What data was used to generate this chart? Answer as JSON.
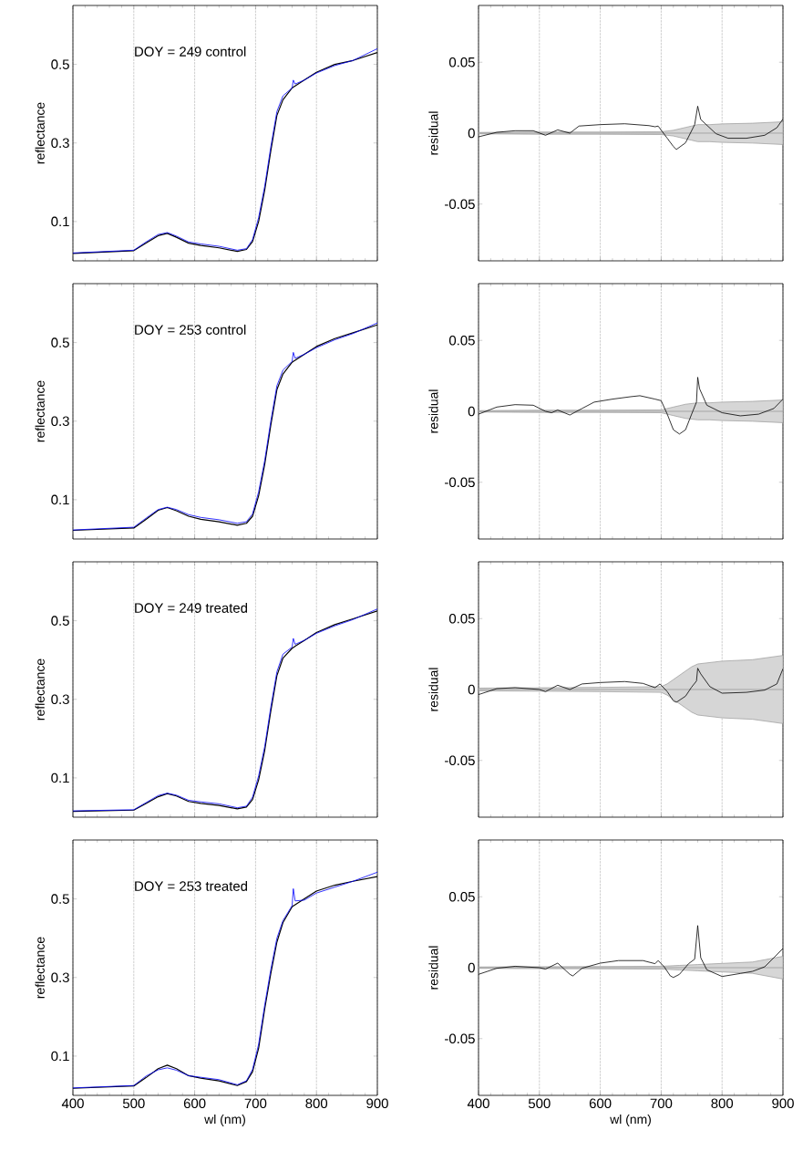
{
  "chart_data": [
    {
      "type": "line",
      "annotations": [
        "DOY = 249 control"
      ],
      "ylabel": "reflectance",
      "xlim": [
        400,
        900
      ],
      "xticks": [
        400,
        500,
        600,
        700,
        800,
        900
      ],
      "ylim": [
        0,
        0.65
      ],
      "yticks": [
        0.1,
        0.3,
        0.5
      ],
      "grid": "x",
      "tick_labels": "y",
      "series": [
        {
          "color": "#0000ff",
          "x": [
            400,
            500,
            520,
            540,
            555,
            570,
            590,
            610,
            640,
            670,
            685,
            695,
            705,
            715,
            725,
            735,
            745,
            760,
            762,
            765,
            780,
            800,
            830,
            860,
            900
          ],
          "values": [
            0.02,
            0.027,
            0.048,
            0.067,
            0.072,
            0.063,
            0.048,
            0.043,
            0.037,
            0.027,
            0.031,
            0.054,
            0.11,
            0.19,
            0.29,
            0.38,
            0.42,
            0.44,
            0.46,
            0.45,
            0.46,
            0.478,
            0.497,
            0.51,
            0.54
          ]
        },
        {
          "color": "#000000",
          "x": [
            400,
            500,
            520,
            540,
            555,
            570,
            590,
            610,
            640,
            670,
            685,
            695,
            705,
            715,
            725,
            735,
            745,
            760,
            762,
            765,
            780,
            800,
            830,
            860,
            900
          ],
          "values": [
            0.019,
            0.026,
            0.045,
            0.064,
            0.07,
            0.06,
            0.045,
            0.039,
            0.033,
            0.024,
            0.029,
            0.049,
            0.1,
            0.18,
            0.28,
            0.37,
            0.41,
            0.44,
            0.442,
            0.445,
            0.46,
            0.48,
            0.5,
            0.51,
            0.53
          ]
        }
      ]
    },
    {
      "type": "line",
      "ylabel": "residual",
      "xlim": [
        400,
        900
      ],
      "xticks": [
        400,
        500,
        600,
        700,
        800,
        900
      ],
      "ylim": [
        -0.09,
        0.09
      ],
      "yticks": [
        -0.05,
        0,
        0.05
      ],
      "grid": "x",
      "tick_labels": "y",
      "series": [
        {
          "color": "#999999",
          "x": [
            400,
            500,
            600,
            700,
            710,
            720,
            730,
            740,
            750,
            760,
            780,
            800,
            850,
            900
          ],
          "values": [
            0,
            0,
            0,
            0,
            0,
            0,
            0,
            0,
            0,
            0,
            0,
            0,
            0,
            0
          ],
          "lower": [
            -0.0005,
            -0.0008,
            -0.0008,
            -0.001,
            -0.0015,
            -0.002,
            -0.003,
            -0.004,
            -0.005,
            -0.006,
            -0.006,
            -0.0065,
            -0.007,
            -0.008
          ],
          "upper": [
            0.0005,
            0.0008,
            0.0008,
            0.001,
            0.0015,
            0.002,
            0.003,
            0.004,
            0.005,
            0.006,
            0.006,
            0.0065,
            0.007,
            0.008
          ]
        },
        {
          "color": "#000000",
          "x": [
            400,
            430,
            460,
            490,
            510,
            530,
            550,
            565,
            600,
            640,
            680,
            690,
            695,
            710,
            720,
            725,
            740,
            755,
            760,
            765,
            790,
            810,
            840,
            870,
            890,
            900
          ],
          "values": [
            -0.0026,
            0.0006,
            0.0017,
            0.0017,
            -0.0015,
            0.0023,
            0,
            0.005,
            0.006,
            0.0066,
            0.0053,
            0.0045,
            0.005,
            -0.0036,
            -0.0094,
            -0.0115,
            -0.0068,
            0.006,
            0.019,
            0.0096,
            -0.0004,
            -0.0036,
            -0.0036,
            -0.0015,
            0.0038,
            0.01
          ]
        }
      ]
    },
    {
      "type": "line",
      "annotations": [
        "DOY = 253 control"
      ],
      "ylabel": "reflectance",
      "xlim": [
        400,
        900
      ],
      "xticks": [
        400,
        500,
        600,
        700,
        800,
        900
      ],
      "ylim": [
        0,
        0.65
      ],
      "yticks": [
        0.1,
        0.3,
        0.5
      ],
      "grid": "x",
      "tick_labels": "y",
      "series": [
        {
          "color": "#0000ff",
          "x": [
            400,
            500,
            520,
            540,
            555,
            570,
            590,
            610,
            640,
            670,
            685,
            695,
            705,
            715,
            725,
            735,
            745,
            760,
            762,
            765,
            780,
            800,
            830,
            860,
            900
          ],
          "values": [
            0.023,
            0.03,
            0.053,
            0.075,
            0.081,
            0.075,
            0.062,
            0.055,
            0.049,
            0.04,
            0.044,
            0.064,
            0.12,
            0.2,
            0.3,
            0.39,
            0.43,
            0.452,
            0.475,
            0.46,
            0.47,
            0.487,
            0.507,
            0.523,
            0.55
          ]
        },
        {
          "color": "#000000",
          "x": [
            400,
            500,
            520,
            540,
            555,
            570,
            590,
            610,
            640,
            670,
            685,
            695,
            705,
            715,
            725,
            735,
            745,
            760,
            762,
            765,
            780,
            800,
            830,
            860,
            900
          ],
          "values": [
            0.022,
            0.028,
            0.05,
            0.073,
            0.08,
            0.072,
            0.058,
            0.05,
            0.044,
            0.035,
            0.04,
            0.058,
            0.11,
            0.19,
            0.29,
            0.38,
            0.42,
            0.45,
            0.452,
            0.455,
            0.47,
            0.49,
            0.51,
            0.525,
            0.545
          ]
        }
      ]
    },
    {
      "type": "line",
      "ylabel": "residual",
      "xlim": [
        400,
        900
      ],
      "xticks": [
        400,
        500,
        600,
        700,
        800,
        900
      ],
      "ylim": [
        -0.09,
        0.09
      ],
      "yticks": [
        -0.05,
        0,
        0.05
      ],
      "grid": "x",
      "tick_labels": "y",
      "series": [
        {
          "color": "#999999",
          "x": [
            400,
            500,
            600,
            700,
            710,
            720,
            730,
            740,
            750,
            760,
            780,
            800,
            850,
            900
          ],
          "values": [
            0,
            0,
            0,
            0,
            0,
            0,
            0,
            0,
            0,
            0,
            0,
            0,
            0,
            0
          ],
          "lower": [
            -0.0005,
            -0.0008,
            -0.0008,
            -0.001,
            -0.002,
            -0.003,
            -0.004,
            -0.005,
            -0.0055,
            -0.006,
            -0.006,
            -0.0065,
            -0.007,
            -0.008
          ],
          "upper": [
            0.0005,
            0.0008,
            0.0008,
            0.001,
            0.002,
            0.003,
            0.004,
            0.005,
            0.0055,
            0.006,
            0.006,
            0.0065,
            0.007,
            0.008
          ]
        },
        {
          "color": "#000000",
          "x": [
            400,
            430,
            460,
            490,
            510,
            520,
            530,
            550,
            570,
            590,
            620,
            650,
            665,
            690,
            700,
            710,
            720,
            730,
            740,
            750,
            758,
            760,
            763,
            775,
            800,
            830,
            860,
            885,
            900
          ],
          "values": [
            -0.002,
            0.003,
            0.0047,
            0.0043,
            0,
            -0.001,
            0.0009,
            -0.0026,
            0.002,
            0.0065,
            0.0086,
            0.0103,
            0.011,
            0.0086,
            0.0075,
            -0.002,
            -0.013,
            -0.016,
            -0.013,
            -0.002,
            0.0065,
            0.024,
            0.016,
            0.0043,
            -0.001,
            -0.0032,
            -0.002,
            0.002,
            0.0086
          ]
        }
      ]
    },
    {
      "type": "line",
      "annotations": [
        "DOY = 249 treated"
      ],
      "ylabel": "reflectance",
      "xlim": [
        400,
        900
      ],
      "xticks": [
        400,
        500,
        600,
        700,
        800,
        900
      ],
      "ylim": [
        0,
        0.65
      ],
      "yticks": [
        0.1,
        0.3,
        0.5
      ],
      "grid": "x",
      "tick_labels": "y",
      "series": [
        {
          "color": "#0000ff",
          "x": [
            400,
            500,
            520,
            540,
            555,
            570,
            590,
            610,
            640,
            670,
            685,
            695,
            705,
            715,
            725,
            735,
            745,
            760,
            762,
            765,
            780,
            800,
            830,
            860,
            900
          ],
          "values": [
            0.016,
            0.019,
            0.037,
            0.055,
            0.061,
            0.056,
            0.043,
            0.039,
            0.034,
            0.024,
            0.028,
            0.051,
            0.105,
            0.18,
            0.28,
            0.37,
            0.415,
            0.433,
            0.455,
            0.44,
            0.45,
            0.468,
            0.487,
            0.503,
            0.53
          ]
        },
        {
          "color": "#000000",
          "x": [
            400,
            500,
            520,
            540,
            555,
            570,
            590,
            610,
            640,
            670,
            685,
            695,
            705,
            715,
            725,
            735,
            745,
            760,
            762,
            765,
            780,
            800,
            830,
            860,
            900
          ],
          "values": [
            0.015,
            0.018,
            0.035,
            0.052,
            0.06,
            0.054,
            0.04,
            0.035,
            0.03,
            0.021,
            0.026,
            0.045,
            0.095,
            0.17,
            0.27,
            0.36,
            0.405,
            0.43,
            0.432,
            0.435,
            0.45,
            0.47,
            0.49,
            0.505,
            0.525
          ]
        }
      ]
    },
    {
      "type": "line",
      "ylabel": "residual",
      "xlim": [
        400,
        900
      ],
      "xticks": [
        400,
        500,
        600,
        700,
        800,
        900
      ],
      "ylim": [
        -0.09,
        0.09
      ],
      "yticks": [
        -0.05,
        0,
        0.05
      ],
      "grid": "x",
      "tick_labels": "y",
      "series": [
        {
          "color": "#999999",
          "x": [
            400,
            500,
            600,
            700,
            710,
            720,
            730,
            740,
            750,
            760,
            780,
            800,
            850,
            900
          ],
          "values": [
            0,
            0,
            0,
            0,
            0,
            0,
            0,
            0,
            0,
            0,
            0,
            0,
            0,
            0
          ],
          "lower": [
            -0.001,
            -0.0012,
            -0.0015,
            -0.002,
            -0.004,
            -0.007,
            -0.01,
            -0.013,
            -0.016,
            -0.018,
            -0.019,
            -0.02,
            -0.021,
            -0.024
          ],
          "upper": [
            0.001,
            0.0012,
            0.0015,
            0.002,
            0.004,
            0.007,
            0.01,
            0.013,
            0.016,
            0.018,
            0.019,
            0.02,
            0.021,
            0.024
          ]
        },
        {
          "color": "#000000",
          "x": [
            400,
            430,
            460,
            500,
            510,
            530,
            550,
            570,
            600,
            640,
            670,
            690,
            698,
            710,
            720,
            725,
            740,
            750,
            758,
            760,
            765,
            780,
            800,
            840,
            870,
            890,
            900
          ],
          "values": [
            -0.0036,
            0.0006,
            0.0013,
            0,
            -0.0015,
            0.003,
            0,
            0.0039,
            0.0049,
            0.0056,
            0.0043,
            0.0013,
            0.0039,
            -0.0015,
            -0.008,
            -0.009,
            -0.0047,
            0.0017,
            0.006,
            0.015,
            0.011,
            0.002,
            -0.0026,
            -0.002,
            -0.0004,
            0.0039,
            0.0146
          ]
        }
      ]
    },
    {
      "type": "line",
      "annotations": [
        "DOY = 253 treated"
      ],
      "ylabel": "reflectance",
      "xlabel": "wl (nm)",
      "xlim": [
        400,
        900
      ],
      "xticks": [
        400,
        500,
        600,
        700,
        800,
        900
      ],
      "ylim": [
        0,
        0.65
      ],
      "yticks": [
        0.1,
        0.3,
        0.5
      ],
      "grid": "x",
      "series": [
        {
          "color": "#0000ff",
          "x": [
            400,
            500,
            520,
            540,
            555,
            570,
            590,
            610,
            640,
            670,
            685,
            695,
            705,
            715,
            725,
            735,
            745,
            760,
            762,
            765,
            780,
            800,
            830,
            860,
            900
          ],
          "values": [
            0.019,
            0.025,
            0.049,
            0.065,
            0.07,
            0.064,
            0.05,
            0.046,
            0.04,
            0.027,
            0.037,
            0.066,
            0.13,
            0.23,
            0.32,
            0.4,
            0.445,
            0.483,
            0.526,
            0.495,
            0.497,
            0.515,
            0.53,
            0.545,
            0.568
          ]
        },
        {
          "color": "#000000",
          "x": [
            400,
            500,
            520,
            540,
            555,
            570,
            590,
            610,
            640,
            670,
            685,
            695,
            705,
            715,
            725,
            735,
            745,
            760,
            762,
            765,
            780,
            800,
            830,
            860,
            900
          ],
          "values": [
            0.018,
            0.024,
            0.045,
            0.068,
            0.077,
            0.068,
            0.05,
            0.044,
            0.037,
            0.025,
            0.035,
            0.06,
            0.12,
            0.22,
            0.31,
            0.39,
            0.44,
            0.48,
            0.482,
            0.485,
            0.5,
            0.52,
            0.535,
            0.545,
            0.557
          ]
        }
      ]
    },
    {
      "type": "line",
      "ylabel": "residual",
      "xlabel": "wl (nm)",
      "xlim": [
        400,
        900
      ],
      "xticks": [
        400,
        500,
        600,
        700,
        800,
        900
      ],
      "ylim": [
        -0.09,
        0.09
      ],
      "yticks": [
        -0.05,
        0,
        0.05
      ],
      "grid": "x",
      "series": [
        {
          "color": "#999999",
          "x": [
            400,
            500,
            600,
            700,
            710,
            720,
            730,
            740,
            750,
            760,
            780,
            800,
            850,
            900
          ],
          "values": [
            0,
            0,
            0,
            0,
            0,
            0,
            0,
            0,
            0,
            0,
            0,
            0,
            0,
            0
          ],
          "lower": [
            -0.0005,
            -0.0007,
            -0.0008,
            -0.001,
            -0.0012,
            -0.0014,
            -0.0016,
            -0.0018,
            -0.002,
            -0.0022,
            -0.0026,
            -0.003,
            -0.004,
            -0.008
          ],
          "upper": [
            0.0005,
            0.0007,
            0.0008,
            0.001,
            0.0012,
            0.0014,
            0.0016,
            0.0018,
            0.002,
            0.0022,
            0.0026,
            0.003,
            0.004,
            0.008
          ]
        },
        {
          "color": "#000000",
          "x": [
            400,
            430,
            460,
            500,
            510,
            530,
            550,
            555,
            570,
            600,
            630,
            670,
            690,
            695,
            705,
            715,
            720,
            730,
            745,
            755,
            760,
            765,
            775,
            800,
            830,
            850,
            870,
            885,
            900
          ],
          "values": [
            -0.0047,
            -0.0004,
            0.001,
            0,
            -0.001,
            0.0032,
            -0.0047,
            -0.0058,
            -0.0004,
            0.0032,
            0.005,
            0.005,
            0.0028,
            0.005,
            0.0006,
            -0.0058,
            -0.0069,
            -0.0047,
            0.0028,
            0.006,
            0.0297,
            0.007,
            -0.0015,
            -0.0062,
            -0.0041,
            -0.0026,
            0.0006,
            0.007,
            0.0135
          ]
        }
      ]
    }
  ]
}
